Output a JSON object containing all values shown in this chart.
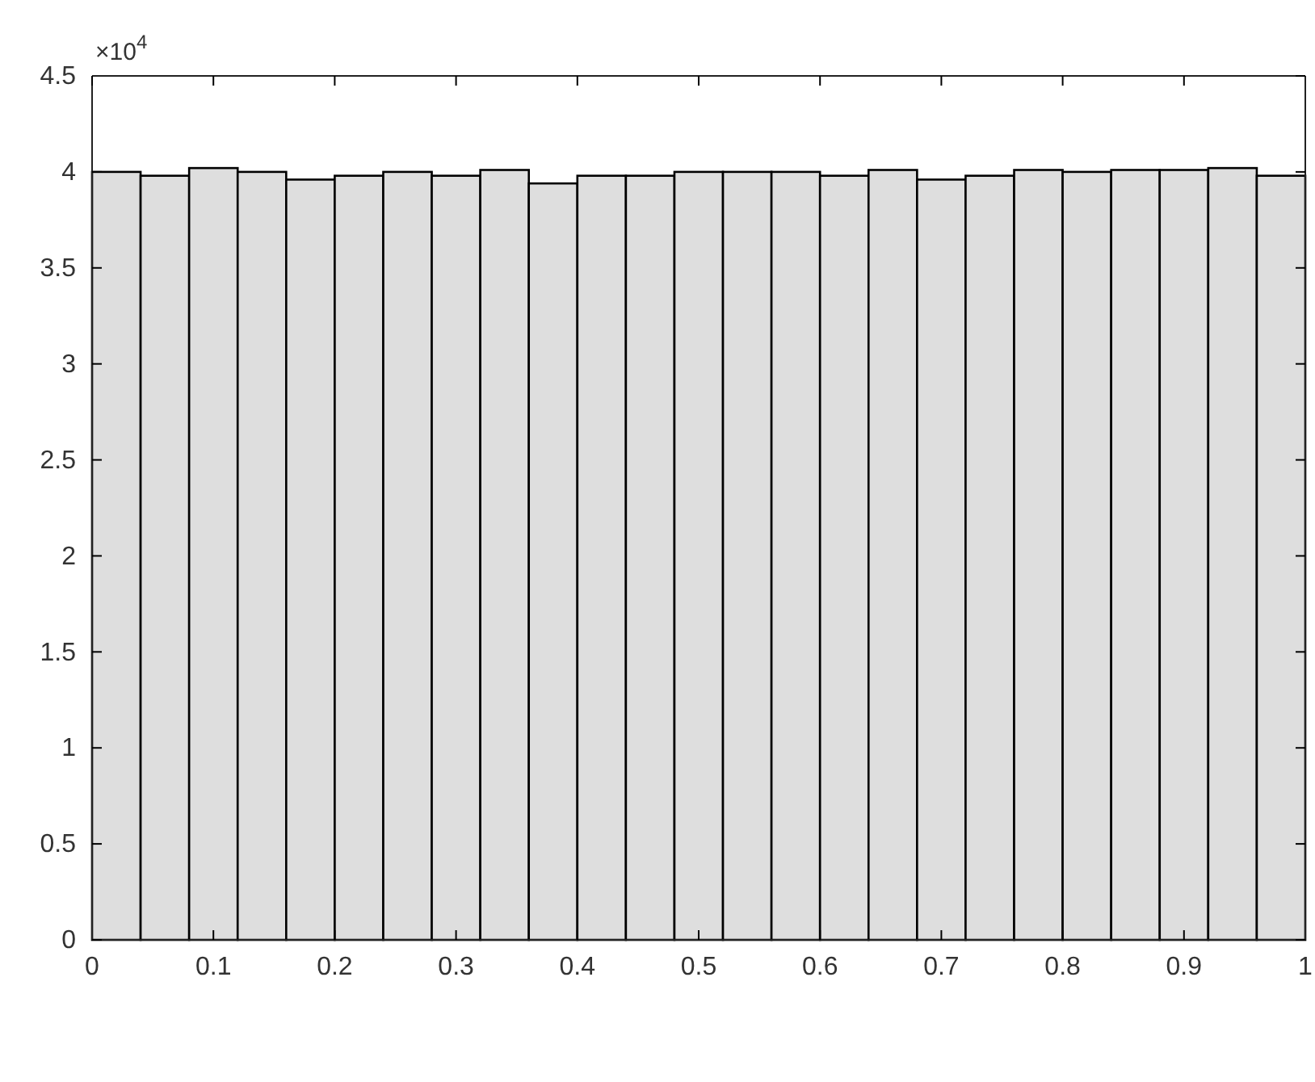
{
  "chart_data": {
    "type": "histogram",
    "bins": [
      0,
      0.04,
      0.08,
      0.12,
      0.16,
      0.2,
      0.24,
      0.28,
      0.32,
      0.36,
      0.4,
      0.44,
      0.48,
      0.52,
      0.56,
      0.6,
      0.64,
      0.68,
      0.72,
      0.76,
      0.8,
      0.84,
      0.88,
      0.92,
      0.96,
      1
    ],
    "values": [
      4.0,
      3.98,
      4.02,
      4.0,
      3.96,
      3.98,
      4.0,
      3.98,
      4.01,
      3.94,
      3.98,
      3.98,
      4.0,
      4.0,
      4.0,
      3.98,
      4.01,
      3.96,
      3.98,
      4.01,
      4.0,
      4.01,
      4.01,
      4.02,
      3.98
    ],
    "color": "#dedede",
    "xlim": [
      0,
      1
    ],
    "xticks": [
      0,
      0.1,
      0.2,
      0.3,
      0.4,
      0.5,
      0.6,
      0.7,
      0.8,
      0.9,
      1
    ],
    "ylim": [
      0,
      4.5
    ],
    "yticks": [
      0,
      0.5,
      1,
      1.5,
      2,
      2.5,
      3,
      3.5,
      4,
      4.5
    ],
    "annotations": [
      "×10$^{4}$"
    ],
    "grid": false
  }
}
